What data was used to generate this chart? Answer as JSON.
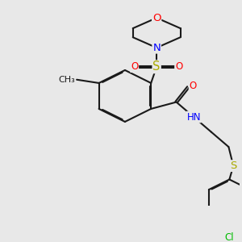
{
  "bg_color": "#e8e8e8",
  "bond_color": "#1a1a1a",
  "bond_width": 1.5,
  "dbo": 0.012,
  "atom_colors": {
    "C": "#1a1a1a",
    "N": "#0000ff",
    "O": "#ff0000",
    "S": "#aaaa00",
    "Cl": "#00bb00",
    "H": "#777777"
  },
  "fs": 8.5,
  "fig_size": [
    3.0,
    3.0
  ],
  "dpi": 100
}
